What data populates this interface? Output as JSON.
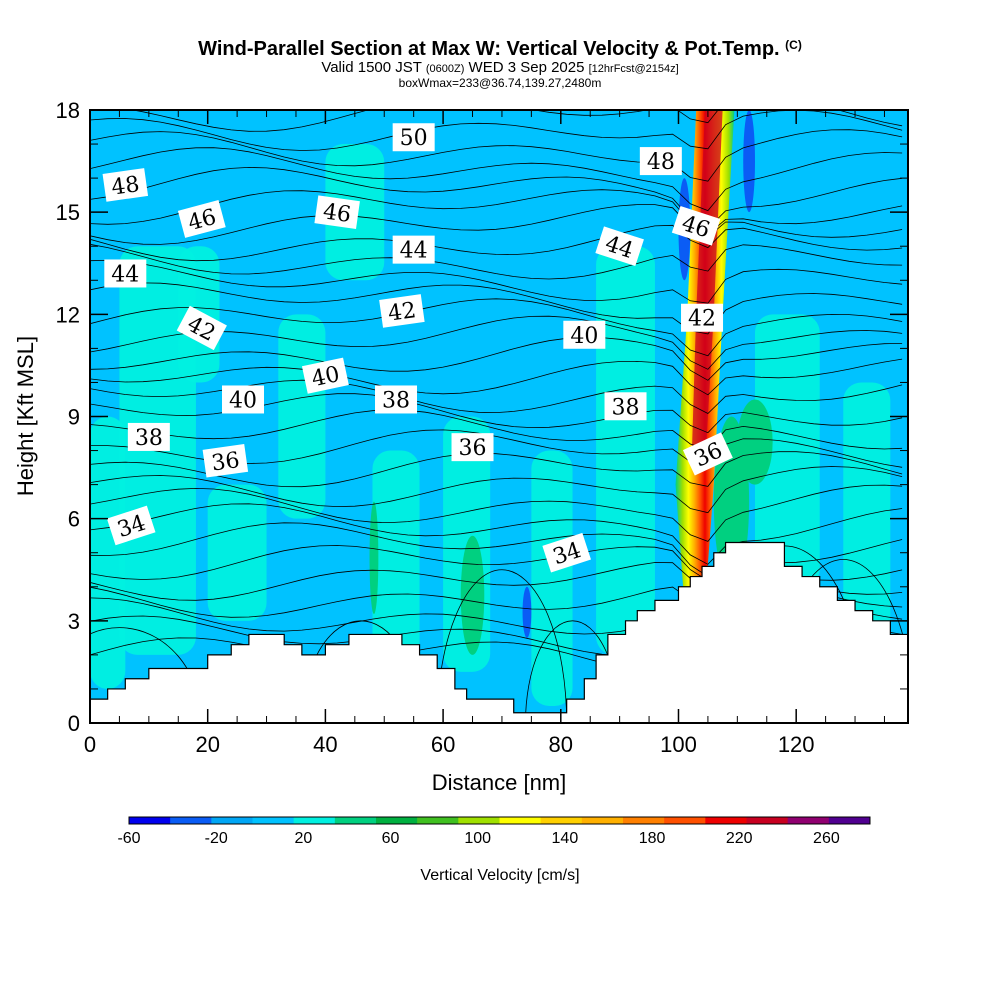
{
  "title": {
    "main": "Wind-Parallel Section at Max W: Vertical Velocity & Pot.Temp.",
    "copyright": "(C)",
    "valid_prefix": "Valid 1500 JST",
    "valid_utc": "(0600Z)",
    "valid_date": "WED 3 Sep 2025",
    "forecast": "[12hrFcst@2154z]",
    "boxwmax": "boxWmax=233@36.74,139.27,2480m"
  },
  "chart_data": {
    "type": "heatmap",
    "xlabel": "Distance [nm]",
    "ylabel": "Height [Kft MSL]",
    "xlim": [
      0,
      139
    ],
    "ylim": [
      0,
      18
    ],
    "x_ticks": [
      0,
      20,
      40,
      60,
      80,
      100,
      120
    ],
    "y_ticks": [
      0,
      3,
      6,
      9,
      12,
      15,
      18
    ],
    "colorbar": {
      "label": "Vertical Velocity [cm/s]",
      "tick_labels": [
        -60,
        -20,
        20,
        60,
        100,
        140,
        180,
        220,
        260
      ],
      "bins": [
        -60,
        -40,
        -20,
        0,
        20,
        40,
        60,
        80,
        100,
        120,
        140,
        160,
        180,
        200,
        220,
        240,
        260,
        280
      ],
      "colors": [
        "#0000ee",
        "#0a5cf5",
        "#00a6f5",
        "#00c2ff",
        "#00f0e0",
        "#00d080",
        "#00b040",
        "#40c020",
        "#a0e000",
        "#ffff00",
        "#ffd000",
        "#ffb000",
        "#ff8000",
        "#ff5000",
        "#ee0000",
        "#c80020",
        "#900070",
        "#500090"
      ]
    },
    "background_w_range": [
      0,
      20
    ],
    "updraft": {
      "x_range": [
        100,
        110
      ],
      "height_range": [
        3.5,
        18
      ],
      "w_max": 233,
      "description_values": [
        "core >= 200 cm/s near x=104-107 nm"
      ]
    },
    "terrain_profile": {
      "x": [
        0,
        3,
        6,
        10,
        20,
        24,
        27,
        30,
        33,
        36,
        40,
        44,
        47,
        50,
        53,
        56,
        59,
        62,
        64,
        66,
        69,
        72,
        75,
        78,
        81,
        84,
        86,
        88,
        91,
        93,
        96,
        98,
        100,
        102,
        104,
        106,
        108,
        111,
        118,
        121,
        124,
        127,
        130,
        133,
        136,
        139
      ],
      "height": [
        0.7,
        1.0,
        1.3,
        1.6,
        2.0,
        2.3,
        2.6,
        2.6,
        2.3,
        2.0,
        2.3,
        2.6,
        2.6,
        2.6,
        2.3,
        2.0,
        1.6,
        1.0,
        0.7,
        0.7,
        0.7,
        0.3,
        0.3,
        0.3,
        0.7,
        1.3,
        2.0,
        2.6,
        3.0,
        3.3,
        3.6,
        3.6,
        4.0,
        4.3,
        4.6,
        5.0,
        5.3,
        5.3,
        4.6,
        4.3,
        4.0,
        3.6,
        3.3,
        3.0,
        2.6,
        2.6
      ]
    },
    "theta_contours": {
      "levels": [
        34,
        36,
        38,
        40,
        42,
        44,
        46,
        48,
        50
      ],
      "labels": [
        {
          "text": "34",
          "x": 7,
          "y": 5.8,
          "rot": -18
        },
        {
          "text": "34",
          "x": 81,
          "y": 5.0,
          "rot": -18
        },
        {
          "text": "36",
          "x": 23,
          "y": 7.7,
          "rot": -8
        },
        {
          "text": "36",
          "x": 65,
          "y": 8.1,
          "rot": 0
        },
        {
          "text": "36",
          "x": 105,
          "y": 7.9,
          "rot": -25
        },
        {
          "text": "38",
          "x": 10,
          "y": 8.4,
          "rot": 0
        },
        {
          "text": "38",
          "x": 52,
          "y": 9.5,
          "rot": 0
        },
        {
          "text": "38",
          "x": 91,
          "y": 9.3,
          "rot": 0
        },
        {
          "text": "40",
          "x": 26,
          "y": 9.5,
          "rot": 0
        },
        {
          "text": "40",
          "x": 40,
          "y": 10.2,
          "rot": -12
        },
        {
          "text": "40",
          "x": 84,
          "y": 11.4,
          "rot": 0
        },
        {
          "text": "42",
          "x": 19,
          "y": 11.6,
          "rot": 28
        },
        {
          "text": "42",
          "x": 53,
          "y": 12.1,
          "rot": -8
        },
        {
          "text": "42",
          "x": 104,
          "y": 11.9,
          "rot": 0
        },
        {
          "text": "44",
          "x": 6,
          "y": 13.2,
          "rot": 0
        },
        {
          "text": "44",
          "x": 55,
          "y": 13.9,
          "rot": 0
        },
        {
          "text": "44",
          "x": 90,
          "y": 14.0,
          "rot": 18
        },
        {
          "text": "46",
          "x": 19,
          "y": 14.8,
          "rot": -15
        },
        {
          "text": "46",
          "x": 42,
          "y": 15.0,
          "rot": 8
        },
        {
          "text": "46",
          "x": 103,
          "y": 14.6,
          "rot": 18
        },
        {
          "text": "48",
          "x": 6,
          "y": 15.8,
          "rot": -8
        },
        {
          "text": "48",
          "x": 97,
          "y": 16.5,
          "rot": 0
        },
        {
          "text": "50",
          "x": 55,
          "y": 17.2,
          "rot": 0
        }
      ]
    }
  }
}
